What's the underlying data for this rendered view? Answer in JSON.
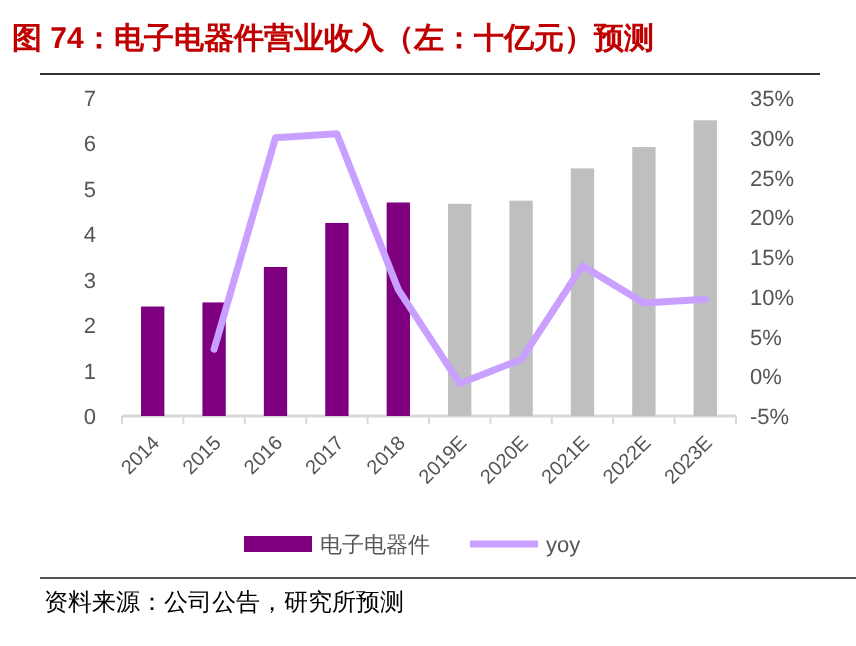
{
  "chart_data": {
    "type": "bar",
    "title": "图 74：电子电器件营业收入（左：十亿元）预测",
    "categories": [
      "2014",
      "2015",
      "2016",
      "2017",
      "2018",
      "2019E",
      "2020E",
      "2021E",
      "2022E",
      "2023E"
    ],
    "series": [
      {
        "name": "电子电器件",
        "color": "#7f007f",
        "colors": [
          "#7f007f",
          "#7f007f",
          "#7f007f",
          "#7f007f",
          "#7f007f",
          "#bfbfbf",
          "#bfbfbf",
          "#bfbfbf",
          "#bfbfbf",
          "#bfbfbf"
        ],
        "values": [
          2.41,
          2.5,
          3.28,
          4.25,
          4.7,
          4.67,
          4.74,
          5.45,
          5.92,
          6.51
        ]
      },
      {
        "name": "yoy",
        "type": "line",
        "axis": "y2",
        "color": "#c9a0ff",
        "values": [
          null,
          3.4,
          30.0,
          30.5,
          10.9,
          -0.9,
          2.1,
          13.9,
          9.2,
          9.7
        ]
      }
    ],
    "ylim": [
      0,
      7
    ],
    "yticks": [
      0,
      1,
      2,
      3,
      4,
      5,
      6,
      7
    ],
    "y2lim": [
      -5,
      35
    ],
    "y2ticks": [
      {
        "value": -5,
        "label": "-5%"
      },
      {
        "value": 0,
        "label": "0%"
      },
      {
        "value": 5,
        "label": "5%"
      },
      {
        "value": 10,
        "label": "10%"
      },
      {
        "value": 15,
        "label": "15%"
      },
      {
        "value": 20,
        "label": "20%"
      },
      {
        "value": 25,
        "label": "25%"
      },
      {
        "value": 30,
        "label": "30%"
      },
      {
        "value": 35,
        "label": "35%"
      }
    ],
    "grid": false,
    "legend": "bottom",
    "annotations": [
      "资料来源：公司公告，研究所预测"
    ]
  }
}
